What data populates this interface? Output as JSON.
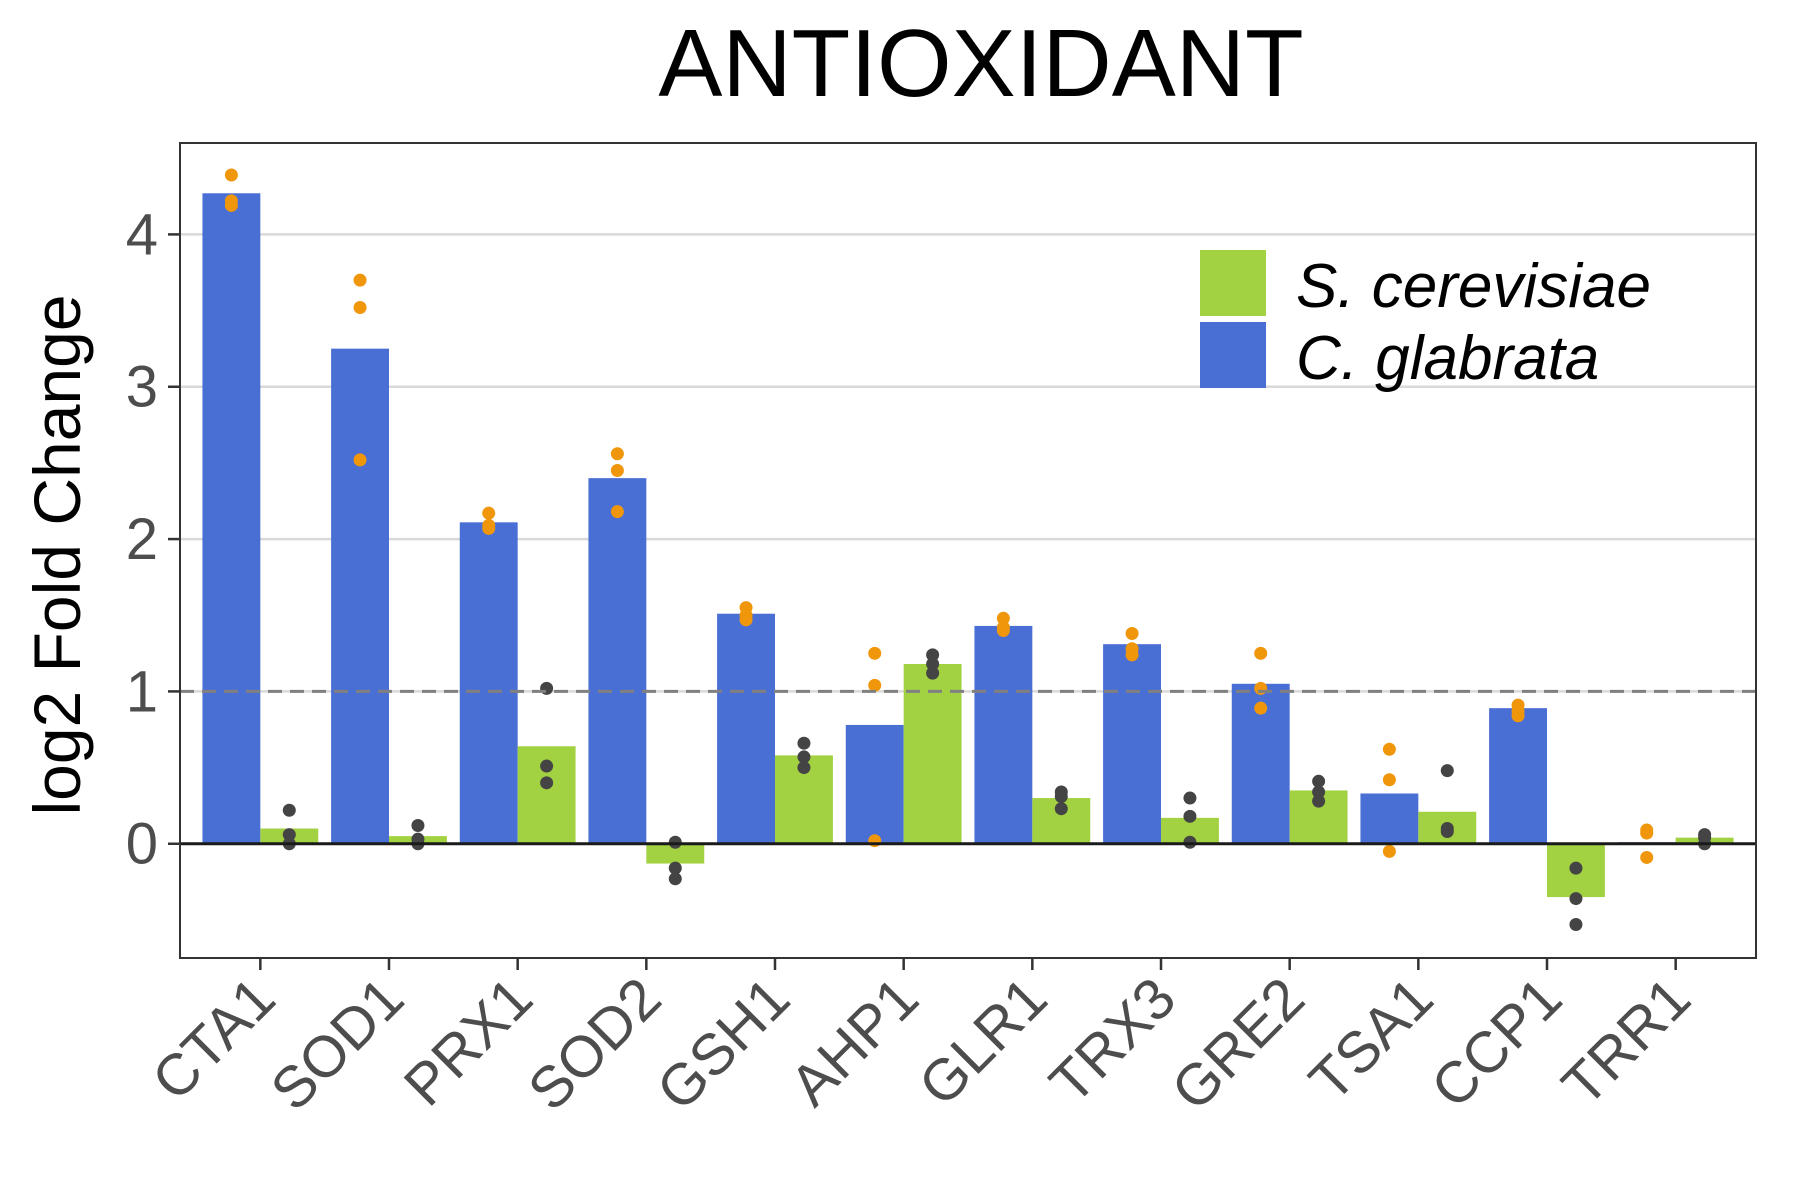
{
  "chart_data": {
    "type": "bar",
    "title": "ANTIOXIDANT",
    "xlabel": "",
    "ylabel": "log2 Fold Change",
    "ylim": [
      -0.75,
      4.6
    ],
    "yticks": [
      0,
      1,
      2,
      3,
      4
    ],
    "reference_line": 1,
    "grid": "horizontal major lines",
    "legend_position": "top-right",
    "categories": [
      "CTA1",
      "SOD1",
      "PRX1",
      "SOD2",
      "GSH1",
      "AHP1",
      "GLR1",
      "TRX3",
      "GRE2",
      "TSA1",
      "CCP1",
      "TRR1"
    ],
    "series": [
      {
        "name": "C. glabrata",
        "color": "#4a6fd4",
        "point_color": "#f0960a",
        "values": [
          4.27,
          3.25,
          2.11,
          2.4,
          1.51,
          0.78,
          1.43,
          1.31,
          1.05,
          0.33,
          0.89,
          0.01
        ],
        "replicates": [
          [
            4.39,
            4.22,
            4.19
          ],
          [
            3.7,
            3.52,
            2.52
          ],
          [
            2.17,
            2.09,
            2.07
          ],
          [
            2.56,
            2.45,
            2.18
          ],
          [
            1.55,
            1.5,
            1.47
          ],
          [
            1.25,
            1.04,
            0.02
          ],
          [
            1.48,
            1.42,
            1.4
          ],
          [
            1.38,
            1.28,
            1.24
          ],
          [
            1.25,
            1.02,
            0.89
          ],
          [
            0.62,
            0.42,
            -0.05
          ],
          [
            0.91,
            0.87,
            0.84
          ],
          [
            0.09,
            0.07,
            -0.09
          ]
        ]
      },
      {
        "name": "S. cerevisiae",
        "color": "#a2d142",
        "point_color": "#444444",
        "values": [
          0.1,
          0.05,
          0.64,
          -0.13,
          0.58,
          1.18,
          0.3,
          0.17,
          0.35,
          0.21,
          -0.35,
          0.04
        ],
        "replicates": [
          [
            0.22,
            0.06,
            0.0
          ],
          [
            0.12,
            0.03,
            0.0
          ],
          [
            1.02,
            0.51,
            0.4
          ],
          [
            0.01,
            -0.16,
            -0.23
          ],
          [
            0.66,
            0.57,
            0.5
          ],
          [
            1.24,
            1.18,
            1.12
          ],
          [
            0.34,
            0.31,
            0.23
          ],
          [
            0.3,
            0.18,
            0.01
          ],
          [
            0.41,
            0.34,
            0.28
          ],
          [
            0.48,
            0.1,
            0.08
          ],
          [
            -0.16,
            -0.36,
            -0.53
          ],
          [
            0.06,
            0.04,
            0.0
          ]
        ]
      }
    ]
  }
}
